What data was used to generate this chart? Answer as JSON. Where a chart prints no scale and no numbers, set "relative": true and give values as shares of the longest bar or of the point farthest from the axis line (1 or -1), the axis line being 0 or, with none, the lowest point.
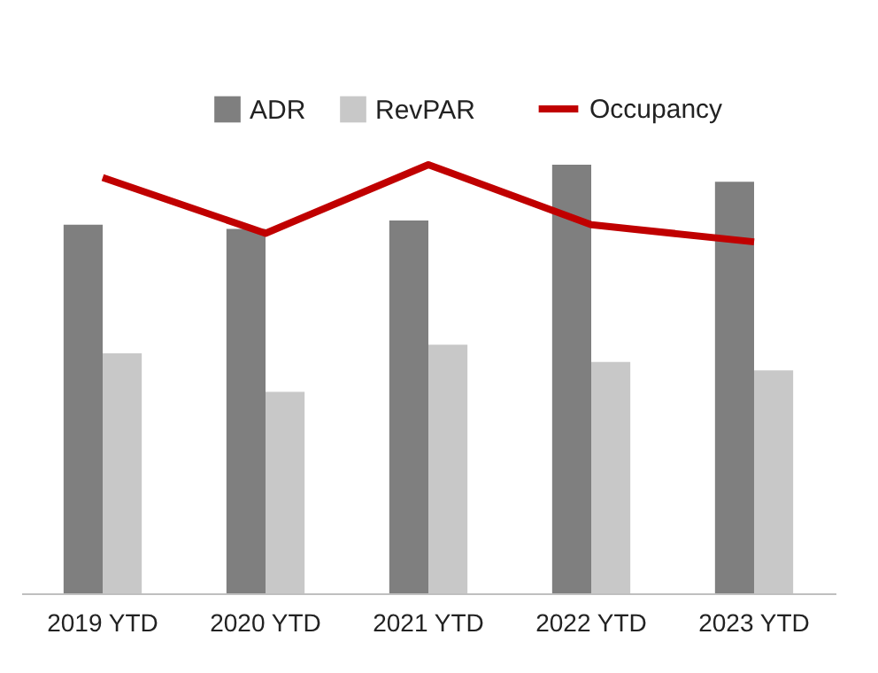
{
  "chart_data": {
    "type": "bar",
    "relative": true,
    "legend": "top",
    "grid": false,
    "categories": [
      "2019 YTD",
      "2020 YTD",
      "2021 YTD",
      "2022 YTD",
      "2023 YTD"
    ],
    "series": [
      {
        "name": "ADR",
        "color": "#7f7f7f",
        "values": [
          0.86,
          0.85,
          0.87,
          1,
          0.96
        ]
      },
      {
        "name": "RevPAR",
        "color": "#c8c8c8",
        "values": [
          0.56,
          0.47,
          0.58,
          0.54,
          0.52
        ]
      },
      {
        "name": "Occupancy",
        "type": "line",
        "line_style": "solid",
        "color": "#c00000",
        "values": [
          0.97,
          0.84,
          1,
          0.86,
          0.82
        ]
      }
    ]
  }
}
